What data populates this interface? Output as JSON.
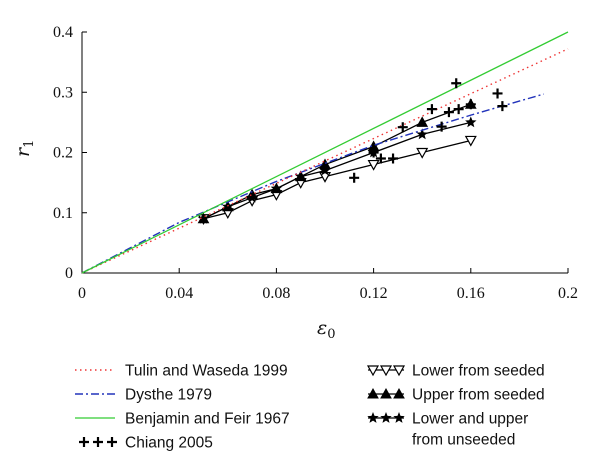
{
  "chart_data": {
    "type": "line",
    "xlabel": "ε",
    "xlabel_sub": "0",
    "ylabel": "r",
    "ylabel_sub": "1",
    "xlim": [
      0,
      0.2
    ],
    "ylim": [
      0,
      0.4
    ],
    "xticks": [
      0,
      0.04,
      0.08,
      0.12,
      0.16,
      0.2
    ],
    "xtick_labels": [
      "0",
      "0.04",
      "0.08",
      "0.12",
      "0.16",
      "0.2"
    ],
    "yticks": [
      0,
      0.1,
      0.2,
      0.3,
      0.4
    ],
    "ytick_labels": [
      "0",
      "0.1",
      "0.2",
      "0.3",
      "0.4"
    ],
    "grid": false,
    "legend_position": "below",
    "series": [
      {
        "name": "Tulin and Waseda 1999",
        "style": "dotted",
        "color": "#ee3333",
        "x": [
          0,
          0.2
        ],
        "y": [
          0,
          0.372
        ]
      },
      {
        "name": "Dysthe 1979",
        "style": "dashdot",
        "color": "#2233bb",
        "x": [
          0,
          0.04,
          0.08,
          0.12,
          0.16,
          0.19
        ],
        "y": [
          0,
          0.084,
          0.152,
          0.212,
          0.262,
          0.297
        ]
      },
      {
        "name": "Benjamin and Feir 1967",
        "style": "solid",
        "color": "#33cc33",
        "x": [
          0,
          0.2
        ],
        "y": [
          0,
          0.4
        ]
      },
      {
        "name": "Chiang 2005",
        "style": "plus",
        "color": "#000000",
        "x": [
          0.112,
          0.12,
          0.123,
          0.128,
          0.132,
          0.144,
          0.148,
          0.151,
          0.154,
          0.155,
          0.16,
          0.171,
          0.173
        ],
        "y": [
          0.158,
          0.2,
          0.19,
          0.19,
          0.242,
          0.272,
          0.243,
          0.267,
          0.315,
          0.272,
          0.28,
          0.298,
          0.277
        ]
      },
      {
        "name": "Lower from seeded",
        "style": "line-triangle-down",
        "color": "#000000",
        "x": [
          0.05,
          0.06,
          0.07,
          0.08,
          0.09,
          0.1,
          0.12,
          0.14,
          0.16
        ],
        "y": [
          0.09,
          0.1,
          0.12,
          0.13,
          0.15,
          0.16,
          0.18,
          0.2,
          0.22
        ]
      },
      {
        "name": "Upper from seeded",
        "style": "line-triangle-up",
        "color": "#000000",
        "x": [
          0.05,
          0.06,
          0.07,
          0.08,
          0.09,
          0.1,
          0.12,
          0.14,
          0.16
        ],
        "y": [
          0.09,
          0.11,
          0.13,
          0.14,
          0.16,
          0.18,
          0.21,
          0.25,
          0.28
        ]
      },
      {
        "name": "Lower and upper from unseeded",
        "style": "line-star",
        "color": "#000000",
        "x": [
          0.05,
          0.06,
          0.07,
          0.08,
          0.09,
          0.1,
          0.12,
          0.14,
          0.16
        ],
        "y": [
          0.09,
          0.11,
          0.125,
          0.14,
          0.16,
          0.17,
          0.2,
          0.23,
          0.25
        ]
      }
    ],
    "legend": {
      "left": [
        "Tulin and Waseda 1999",
        "Dysthe 1979",
        "Benjamin and Feir 1967",
        "Chiang 2005"
      ],
      "right": [
        [
          "Lower from seeded"
        ],
        [
          "Upper from seeded"
        ],
        [
          "Lower and upper",
          "from unseeded"
        ]
      ]
    }
  }
}
